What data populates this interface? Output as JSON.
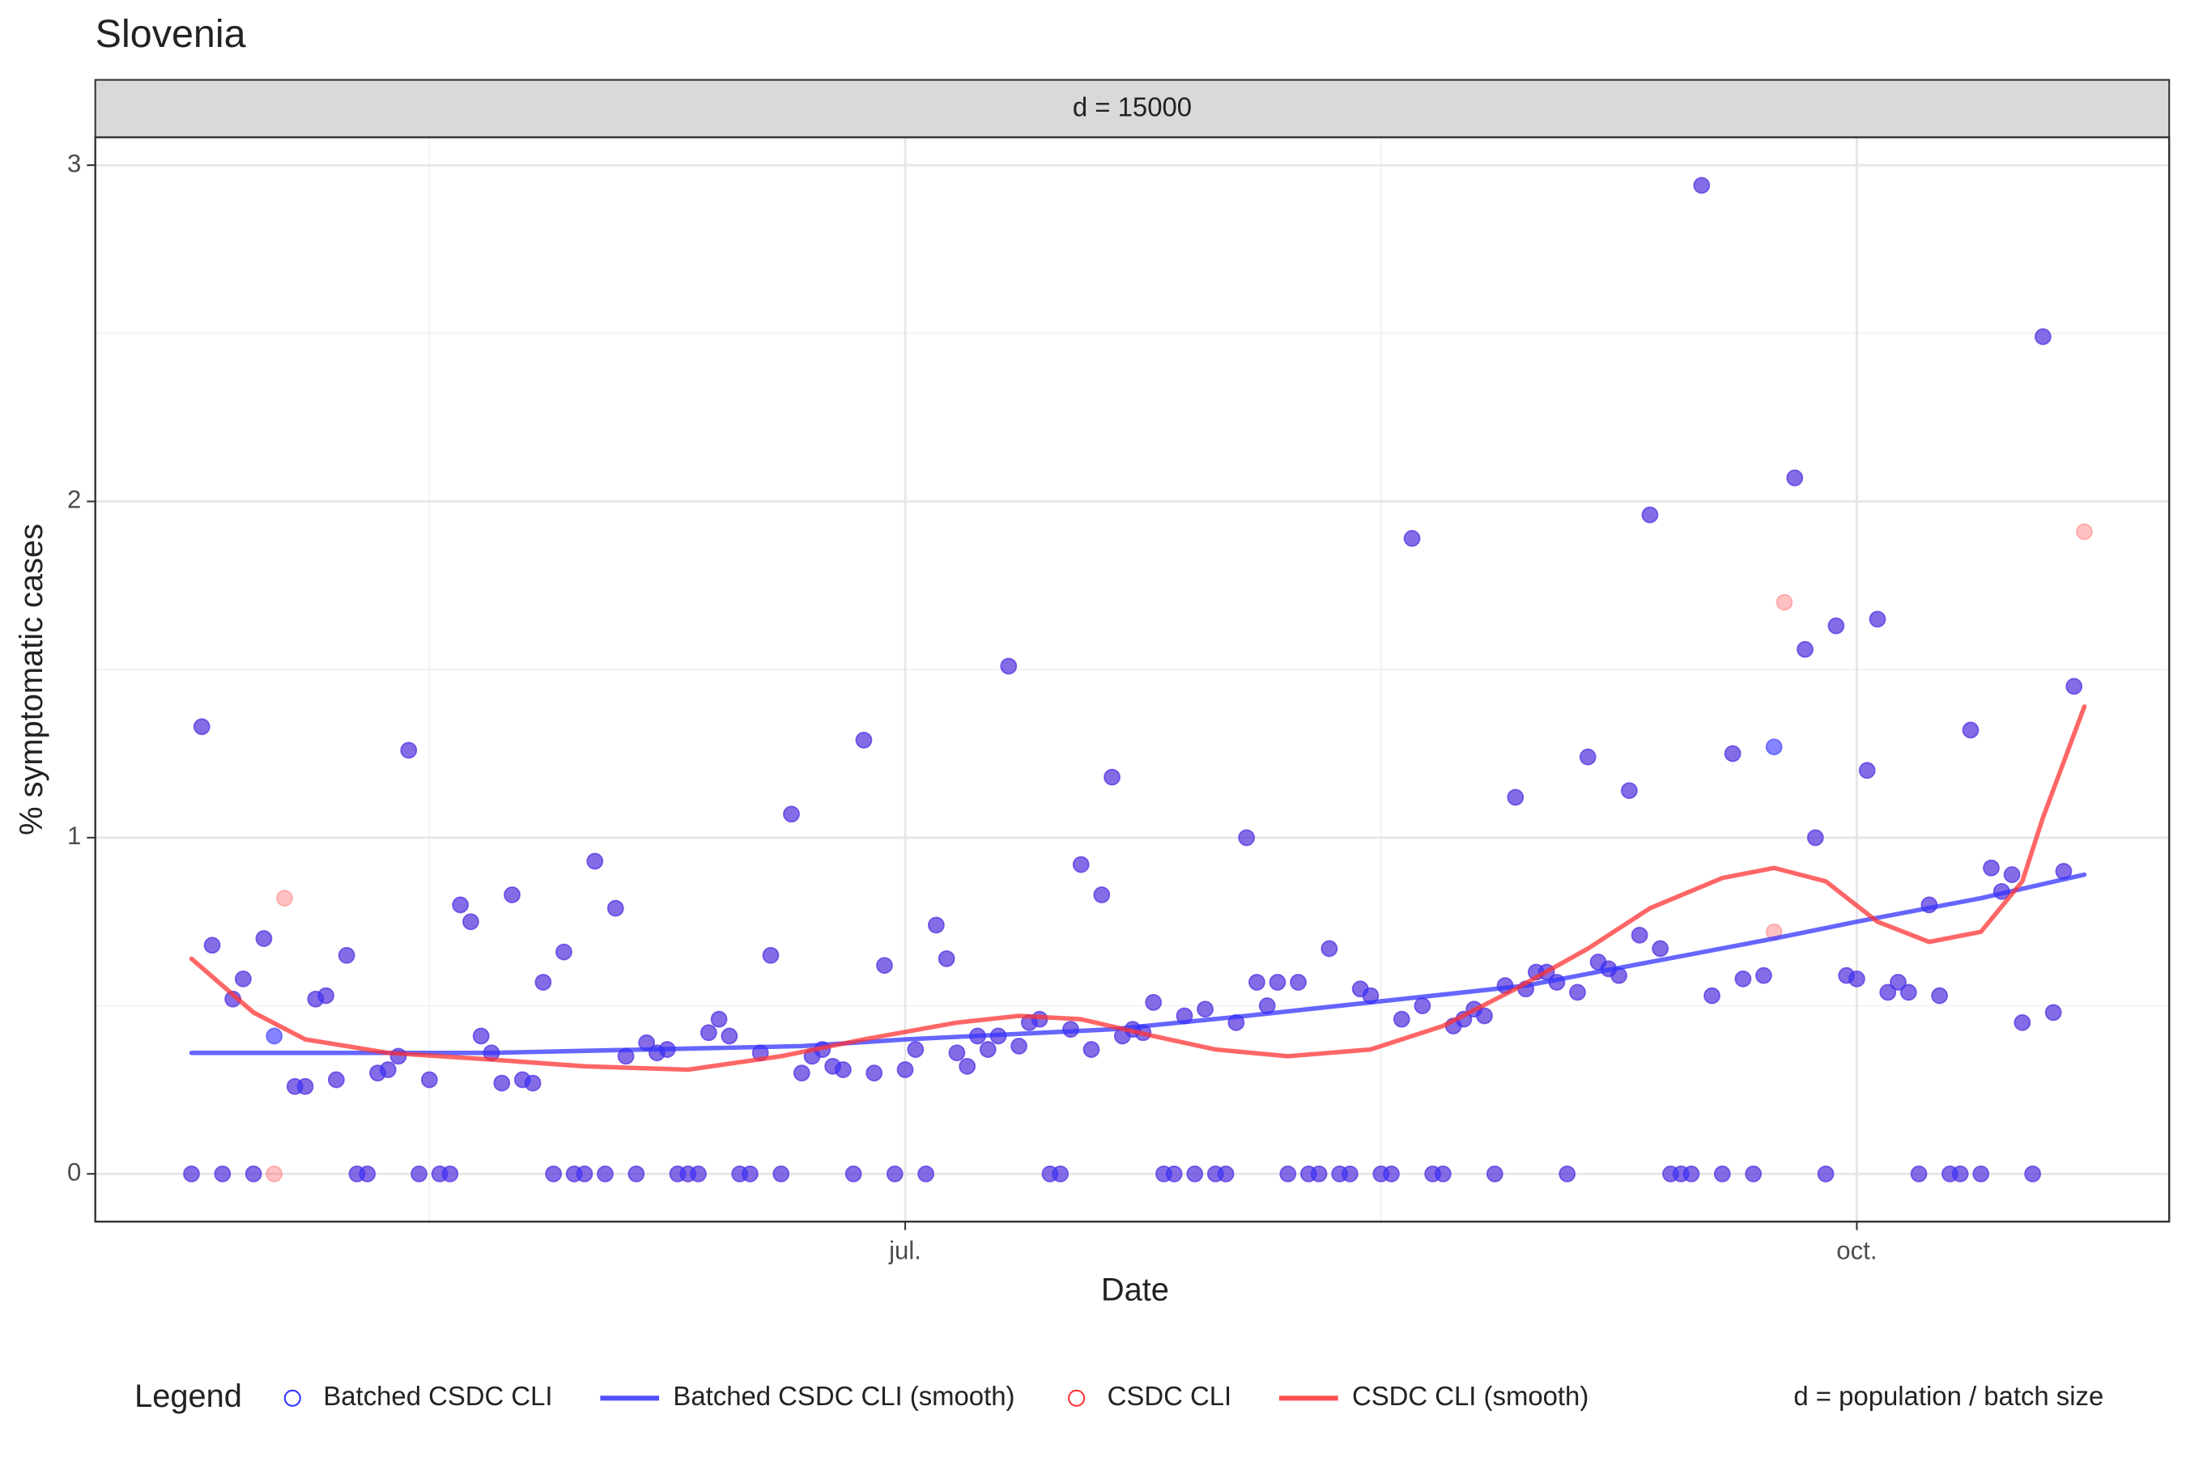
{
  "chart_data": {
    "type": "scatter",
    "title": "Slovenia",
    "strip_label": "d = 15000",
    "x_label": "Date",
    "y_label": "% symptomatic cases",
    "xlim": [
      -78.3,
      122.2
    ],
    "ylim": [
      -0.142,
      3.083
    ],
    "xticks": [
      {
        "value": 0,
        "label": "jul."
      },
      {
        "value": 92,
        "label": "oct."
      }
    ],
    "yticks": [
      0,
      1,
      2,
      3
    ],
    "grid": true,
    "minor_grid": true,
    "legend_position": "bottom",
    "legend_title": "Legend",
    "legend_note": "d = population / batch size",
    "x": [
      -69,
      -68,
      -67,
      -66,
      -65,
      -64,
      -63,
      -62,
      -61,
      -60,
      -59,
      -58,
      -57,
      -56,
      -55,
      -54,
      -53,
      -52,
      -51,
      -50,
      -49,
      -48,
      -47,
      -46,
      -45,
      -44,
      -43,
      -42,
      -41,
      -40,
      -39,
      -38,
      -37,
      -36,
      -35,
      -34,
      -33,
      -32,
      -31,
      -30,
      -29,
      -28,
      -27,
      -26,
      -25,
      -24,
      -23,
      -22,
      -21,
      -20,
      -19,
      -18,
      -17,
      -16,
      -15,
      -14,
      -13,
      -12,
      -11,
      -10,
      -9,
      -8,
      -7,
      -6,
      -5,
      -4,
      -3,
      -2,
      -1,
      0,
      1,
      2,
      3,
      4,
      5,
      6,
      7,
      8,
      9,
      10,
      11,
      12,
      13,
      14,
      15,
      16,
      17,
      18,
      19,
      20,
      21,
      22,
      23,
      24,
      25,
      26,
      27,
      28,
      29,
      30,
      31,
      32,
      33,
      34,
      35,
      36,
      37,
      38,
      39,
      40,
      41,
      42,
      43,
      44,
      45,
      46,
      47,
      48,
      49,
      50,
      51,
      52,
      53,
      54,
      55,
      56,
      57,
      58,
      59,
      60,
      61,
      62,
      63,
      64,
      65,
      66,
      67,
      68,
      69,
      70,
      71,
      72,
      73,
      74,
      75,
      76,
      77,
      78,
      79,
      80,
      81,
      82,
      83,
      84,
      85,
      86,
      87,
      88,
      89,
      90,
      91,
      92,
      93,
      94,
      95,
      96,
      97,
      98,
      99,
      100,
      101,
      102,
      103,
      104,
      105,
      106,
      107,
      108,
      109,
      110,
      111,
      112,
      113,
      114
    ],
    "series": [
      {
        "name": "Batched CSDC CLI",
        "mode": "points",
        "color": "#3333ff",
        "values": [
          0,
          1.33,
          0.68,
          0,
          0.52,
          0.58,
          0,
          0.7,
          0.41,
          null,
          0.26,
          0.26,
          0.52,
          0.53,
          0.28,
          0.65,
          0,
          0,
          0.3,
          0.31,
          0.35,
          1.26,
          0,
          0.28,
          0,
          0,
          0.8,
          0.75,
          0.41,
          0.36,
          0.27,
          0.83,
          0.28,
          0.27,
          0.57,
          0,
          0.66,
          0,
          0,
          0.93,
          0,
          0.79,
          0.35,
          0,
          0.39,
          0.36,
          0.37,
          0,
          0,
          0,
          0.42,
          0.46,
          0.41,
          0,
          0,
          0.36,
          0.65,
          0,
          1.07,
          0.3,
          0.35,
          0.37,
          0.32,
          0.31,
          0,
          1.29,
          0.3,
          0.62,
          0,
          0.31,
          0.37,
          0,
          0.74,
          0.64,
          0.36,
          0.32,
          0.41,
          0.37,
          0.41,
          1.51,
          0.38,
          0.45,
          0.46,
          0,
          0,
          0.43,
          0.92,
          0.37,
          0.83,
          1.18,
          0.41,
          0.43,
          0.42,
          0.51,
          0,
          0,
          0.47,
          0,
          0.49,
          0,
          0,
          0.45,
          1.0,
          0.57,
          0.5,
          0.57,
          0,
          0.57,
          0,
          0,
          0.67,
          0,
          0,
          0.55,
          0.53,
          0,
          0,
          0.46,
          1.89,
          0.5,
          0,
          0,
          0.44,
          0.46,
          0.49,
          0.47,
          0,
          0.56,
          1.12,
          0.55,
          0.6,
          0.6,
          0.57,
          0,
          0.54,
          1.24,
          0.63,
          0.61,
          0.59,
          1.14,
          0.71,
          1.96,
          0.67,
          0,
          0,
          0,
          2.94,
          0.53,
          0,
          1.25,
          0.58,
          0,
          0.59,
          1.27,
          null,
          2.07,
          1.56,
          1.0,
          0,
          1.63,
          0.59,
          0.58,
          1.2,
          1.65,
          0.54,
          0.57,
          0.54,
          0,
          0.8,
          0.53,
          0,
          0,
          1.32,
          0,
          0.91,
          0.84,
          0.89,
          0.45,
          0,
          2.49,
          0.48,
          0.9,
          1.45,
          null
        ]
      },
      {
        "name": "Batched CSDC CLI (smooth)",
        "mode": "line",
        "color": "#3333ff",
        "x": [
          -69,
          -40,
          -10,
          0,
          20,
          33,
          45,
          60,
          72,
          84,
          92,
          104,
          114
        ],
        "values": [
          0.36,
          0.36,
          0.38,
          0.4,
          0.43,
          0.47,
          0.51,
          0.56,
          0.63,
          0.7,
          0.75,
          0.82,
          0.89
        ]
      },
      {
        "name": "CSDC CLI",
        "mode": "points",
        "color": "#ff3333",
        "values": [
          0,
          1.33,
          0.68,
          0,
          0.52,
          0.58,
          0,
          0.7,
          0,
          0.82,
          0.26,
          0.26,
          0.52,
          0.53,
          0.28,
          0.65,
          0,
          0,
          0.3,
          0.31,
          0.35,
          1.26,
          0,
          0.28,
          0,
          0,
          0.8,
          0.75,
          0.41,
          0.36,
          0.27,
          0.83,
          0.28,
          0.27,
          0.57,
          0,
          0.66,
          0,
          0,
          0.93,
          0,
          0.79,
          0.35,
          0,
          0.39,
          0.36,
          0.37,
          0,
          0,
          0,
          0.42,
          0.46,
          0.41,
          0,
          0,
          0.36,
          0.65,
          0,
          1.07,
          0.3,
          0.35,
          0.37,
          0.32,
          0.31,
          0,
          1.29,
          0.3,
          0.62,
          0,
          0.31,
          0.37,
          0,
          0.74,
          0.64,
          0.36,
          0.32,
          0.41,
          0.37,
          0.41,
          1.51,
          0.38,
          0.45,
          0.46,
          0,
          0,
          0.43,
          0.92,
          0.37,
          0.83,
          1.18,
          0.41,
          0.43,
          0.42,
          0.51,
          0,
          0,
          0.47,
          0,
          0.49,
          0,
          0,
          0.45,
          1.0,
          0.57,
          0.5,
          0.57,
          0,
          0.57,
          0,
          0,
          0.67,
          0,
          0,
          0.55,
          0.53,
          0,
          0,
          0.46,
          1.89,
          0.5,
          0,
          0,
          0.44,
          0.46,
          0.49,
          0.47,
          0,
          0.56,
          1.12,
          0.55,
          0.6,
          0.6,
          0.57,
          0,
          0.54,
          1.24,
          0.63,
          0.61,
          0.59,
          1.14,
          0.71,
          1.96,
          0.67,
          0,
          0,
          0,
          2.94,
          0.53,
          0,
          1.25,
          0.58,
          0,
          0.59,
          0.72,
          1.7,
          2.07,
          1.56,
          1.0,
          0,
          1.63,
          0.59,
          0.58,
          1.2,
          1.65,
          0.54,
          0.57,
          0.54,
          0,
          0.8,
          0.53,
          0,
          0,
          1.32,
          0,
          0.91,
          0.84,
          0.89,
          0.45,
          0,
          2.49,
          0.48,
          0.9,
          1.45,
          1.91
        ]
      },
      {
        "name": "CSDC CLI (smooth)",
        "mode": "line",
        "color": "#ff3333",
        "x": [
          -69,
          -63,
          -58,
          -50,
          -40,
          -31,
          -21,
          -12,
          -4,
          5,
          11,
          17,
          24,
          30,
          37,
          45,
          52,
          59,
          66,
          72,
          79,
          84,
          89,
          94,
          99,
          104,
          108,
          110,
          114
        ],
        "values": [
          0.64,
          0.48,
          0.4,
          0.36,
          0.34,
          0.32,
          0.31,
          0.35,
          0.4,
          0.45,
          0.47,
          0.46,
          0.41,
          0.37,
          0.35,
          0.37,
          0.44,
          0.55,
          0.67,
          0.79,
          0.88,
          0.91,
          0.87,
          0.75,
          0.69,
          0.72,
          0.87,
          1.06,
          1.39
        ]
      }
    ]
  }
}
